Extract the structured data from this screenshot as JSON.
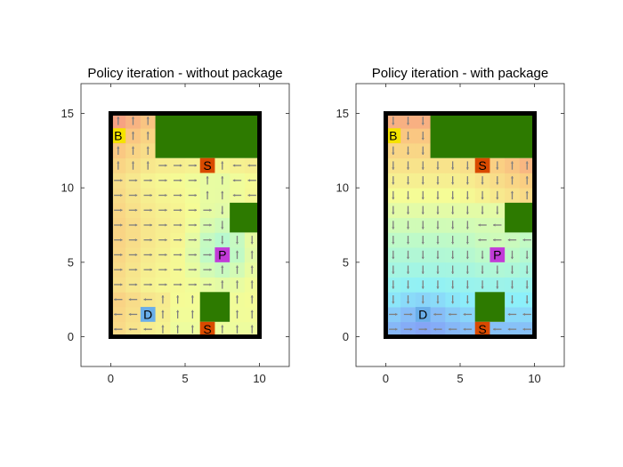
{
  "chart_data": [
    {
      "type": "heatmap",
      "title": "Policy iteration - without package",
      "xlim": [
        -2,
        12
      ],
      "ylim": [
        -2,
        17
      ],
      "xticks": [
        0,
        5,
        10
      ],
      "yticks": [
        0,
        5,
        10,
        15
      ],
      "grid_size": {
        "cols": 10,
        "rows": 15
      },
      "obstacles": [
        {
          "x": [
            3,
            10
          ],
          "y": [
            12,
            15
          ]
        },
        {
          "x": [
            8,
            10
          ],
          "y": [
            7,
            9
          ]
        },
        {
          "x": [
            6,
            8
          ],
          "y": [
            1,
            3
          ]
        }
      ],
      "markers": [
        {
          "label": "B",
          "x": 0.5,
          "y": 13.5,
          "color": "#f5e300"
        },
        {
          "label": "S",
          "x": 6.5,
          "y": 11.5,
          "color": "#d94a00"
        },
        {
          "label": "P",
          "x": 7.5,
          "y": 5.5,
          "color": "#c23bd8"
        },
        {
          "label": "D",
          "x": 2.5,
          "y": 1.5,
          "color": "#6aaee9"
        },
        {
          "label": "S",
          "x": 6.5,
          "y": 0.5,
          "color": "#d94a00"
        }
      ],
      "color_scheme": "warm-at-top"
    },
    {
      "type": "heatmap",
      "title": "Policy iteration - with package",
      "xlim": [
        -2,
        12
      ],
      "ylim": [
        -2,
        17
      ],
      "xticks": [
        0,
        5,
        10
      ],
      "yticks": [
        0,
        5,
        10,
        15
      ],
      "grid_size": {
        "cols": 10,
        "rows": 15
      },
      "obstacles": [
        {
          "x": [
            3,
            10
          ],
          "y": [
            12,
            15
          ]
        },
        {
          "x": [
            8,
            10
          ],
          "y": [
            7,
            9
          ]
        },
        {
          "x": [
            6,
            8
          ],
          "y": [
            1,
            3
          ]
        }
      ],
      "markers": [
        {
          "label": "B",
          "x": 0.5,
          "y": 13.5,
          "color": "#f5e300"
        },
        {
          "label": "S",
          "x": 6.5,
          "y": 11.5,
          "color": "#d94a00"
        },
        {
          "label": "P",
          "x": 7.5,
          "y": 5.5,
          "color": "#c23bd8"
        },
        {
          "label": "D",
          "x": 2.5,
          "y": 1.5,
          "color": "#6aaee9"
        },
        {
          "label": "S",
          "x": 6.5,
          "y": 0.5,
          "color": "#d94a00"
        }
      ],
      "color_scheme": "cool-at-bottom"
    }
  ],
  "colors": {
    "obstacle": "#2d7a00",
    "wall": "#000000",
    "arrow": "#7f7f7f",
    "axis": "#262626"
  }
}
